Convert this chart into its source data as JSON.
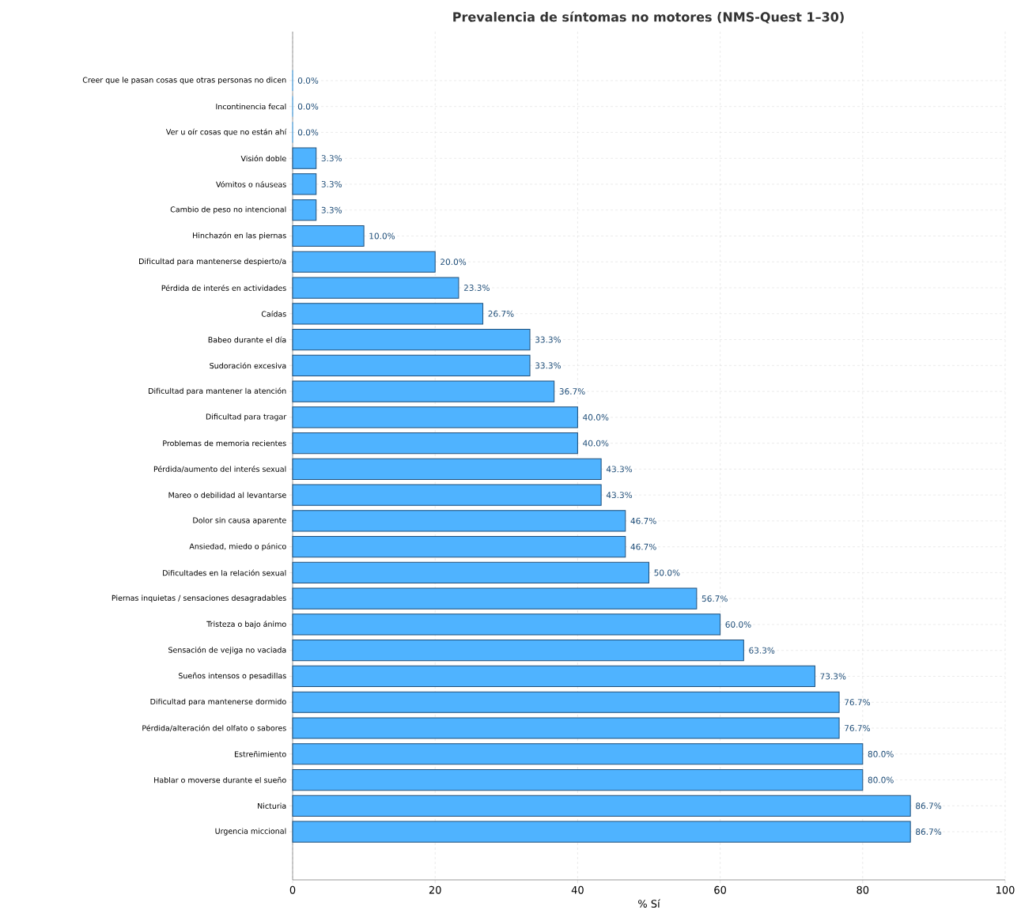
{
  "chart_data": {
    "type": "bar",
    "orientation": "horizontal",
    "title": "**Prevalencia de síntomas no motores (NMS-Quest 1–30)**",
    "xlabel": "% Sí",
    "categories": [
      "Creer que le pasan cosas que otras personas no dicen",
      "Incontinencia fecal",
      "Ver u oír cosas que no están ahí",
      "Visión doble",
      "Vómitos o náuseas",
      "Cambio de peso no intencional",
      "Hinchazón en las piernas",
      "Dificultad para mantenerse despierto/a",
      "Pérdida de interés en actividades",
      "Caídas",
      "Babeo durante el día",
      "Sudoración excesiva",
      "Dificultad para mantener la atención",
      "Dificultad para tragar",
      "Problemas de memoria recientes",
      "Pérdida/aumento del interés sexual",
      "Mareo o debilidad al levantarse",
      "Dolor sin causa aparente",
      "Ansiedad, miedo o pánico",
      "Dificultades en la relación sexual",
      "Piernas inquietas / sensaciones desagradables",
      "Tristeza o bajo ánimo",
      "Sensación de vejiga no vaciada",
      "Sueños intensos o pesadillas",
      "Dificultad para mantenerse dormido",
      "Pérdida/alteración del olfato o sabores",
      "Estreñimiento",
      "Hablar o moverse durante el sueño",
      "Nicturia",
      "Urgencia miccional"
    ],
    "values": [
      0,
      0,
      0,
      3.3,
      3.3,
      3.3,
      10,
      20,
      23.3,
      26.7,
      33.3,
      33.3,
      36.7,
      40,
      40,
      43.3,
      43.3,
      46.7,
      46.7,
      50,
      56.7,
      60,
      63.3,
      73.3,
      76.7,
      76.7,
      80,
      80,
      86.7,
      86.7
    ],
    "value_labels": [
      "0.0%",
      "0.0%",
      "0.0%",
      "3.3%",
      "3.3%",
      "3.3%",
      "10.0%",
      "20.0%",
      "23.3%",
      "26.7%",
      "33.3%",
      "33.3%",
      "36.7%",
      "40.0%",
      "40.0%",
      "43.3%",
      "43.3%",
      "46.7%",
      "46.7%",
      "50.0%",
      "56.7%",
      "60.0%",
      "63.3%",
      "73.3%",
      "76.7%",
      "76.7%",
      "80.0%",
      "80.0%",
      "86.7%",
      "86.7%"
    ],
    "color": "#4fb3ff",
    "xlim": [
      0,
      100
    ],
    "xticks": [
      0,
      20,
      40,
      60,
      80,
      100
    ],
    "grid": true
  }
}
